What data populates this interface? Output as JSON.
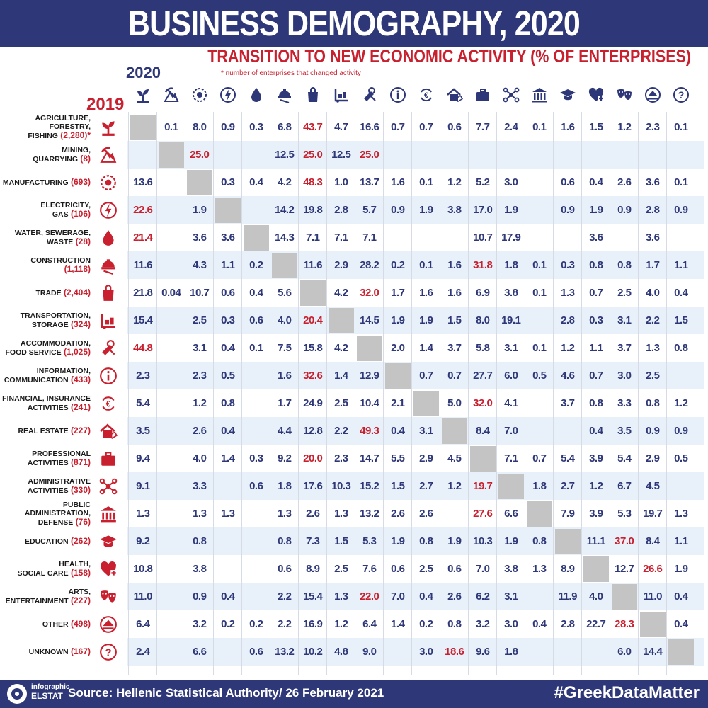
{
  "header": {
    "title": "BUSINESS DEMOGRAPHY, 2020",
    "subtitle": "TRANSITION TO NEW ECONOMIC ACTIVITY (% OF ENTERPRISES)",
    "footnote": "* number of enterprises that changed activity",
    "col_year": "2020",
    "row_year": "2019"
  },
  "footer": {
    "logo_line1": "infographic",
    "logo_line2": "ELSTAT",
    "source": "Source: Hellenic Statistical Authority/ 26 February 2021",
    "hashtag": "#GreekDataMatter"
  },
  "colors": {
    "navy": "#2e3878",
    "red": "#c8202f",
    "band": "#e8f1fa",
    "diag": "#c4c4c4"
  },
  "column_icons": [
    "agriculture-icon",
    "mining-icon",
    "manufacturing-icon",
    "electricity-icon",
    "water-icon",
    "construction-icon",
    "trade-icon",
    "transportation-icon",
    "accommodation-icon",
    "information-icon",
    "financial-icon",
    "real-estate-icon",
    "professional-icon",
    "administrative-icon",
    "public-administration-icon",
    "education-icon",
    "health-icon",
    "arts-icon",
    "other-icon",
    "unknown-icon"
  ],
  "chart_data": {
    "type": "table",
    "title": "TRANSITION TO NEW ECONOMIC ACTIVITY (% OF ENTERPRISES)",
    "rows": [
      {
        "label_lines": [
          "AGRICULTURE, FORESTRY,",
          "FISHING"
        ],
        "count": "(2,280)*",
        "values": [
          null,
          "0.1",
          "8.0",
          "0.9",
          "0.3",
          "6.8",
          "43.7",
          "4.7",
          "16.6",
          "0.7",
          "0.7",
          "0.6",
          "7.7",
          "2.4",
          "0.1",
          "1.6",
          "1.5",
          "1.2",
          "2.3",
          "0.1"
        ],
        "highlight": [
          6
        ]
      },
      {
        "label_lines": [
          "MINING,",
          "QUARRYING"
        ],
        "count": "(8)",
        "values": [
          "",
          null,
          "25.0",
          "",
          "",
          "12.5",
          "25.0",
          "12.5",
          "25.0",
          "",
          "",
          "",
          "",
          "",
          "",
          "",
          "",
          "",
          "",
          ""
        ],
        "highlight": [
          2,
          6,
          8
        ]
      },
      {
        "label_lines": [
          "MANUFACTURING"
        ],
        "count": "(693)",
        "values": [
          "13.6",
          "",
          null,
          "0.3",
          "0.4",
          "4.2",
          "48.3",
          "1.0",
          "13.7",
          "1.6",
          "0.1",
          "1.2",
          "5.2",
          "3.0",
          "",
          "0.6",
          "0.4",
          "2.6",
          "3.6",
          "0.1"
        ],
        "highlight": [
          6
        ]
      },
      {
        "label_lines": [
          "ELECTRICITY,",
          "GAS"
        ],
        "count": "(106)",
        "values": [
          "22.6",
          "",
          "1.9",
          null,
          "",
          "14.2",
          "19.8",
          "2.8",
          "5.7",
          "0.9",
          "1.9",
          "3.8",
          "17.0",
          "1.9",
          "",
          "0.9",
          "1.9",
          "0.9",
          "2.8",
          "0.9"
        ],
        "highlight": [
          0
        ]
      },
      {
        "label_lines": [
          "WATER, SEWERAGE,",
          "WASTE"
        ],
        "count": "(28)",
        "values": [
          "21.4",
          "",
          "3.6",
          "3.6",
          null,
          "14.3",
          "7.1",
          "7.1",
          "7.1",
          "",
          "",
          "",
          "10.7",
          "17.9",
          "",
          "",
          "3.6",
          "",
          "3.6",
          ""
        ],
        "highlight": [
          0
        ]
      },
      {
        "label_lines": [
          "CONSTRUCTION"
        ],
        "count": "(1,118)",
        "count_newline": true,
        "values": [
          "11.6",
          "",
          "4.3",
          "1.1",
          "0.2",
          null,
          "11.6",
          "2.9",
          "28.2",
          "0.2",
          "0.1",
          "1.6",
          "31.8",
          "1.8",
          "0.1",
          "0.3",
          "0.8",
          "0.8",
          "1.7",
          "1.1"
        ],
        "highlight": [
          12
        ]
      },
      {
        "label_lines": [
          "TRADE"
        ],
        "count": "(2,404)",
        "values": [
          "21.8",
          "0.04",
          "10.7",
          "0.6",
          "0.4",
          "5.6",
          null,
          "4.2",
          "32.0",
          "1.7",
          "1.6",
          "1.6",
          "6.9",
          "3.8",
          "0.1",
          "1.3",
          "0.7",
          "2.5",
          "4.0",
          "0.4"
        ],
        "highlight": [
          8
        ]
      },
      {
        "label_lines": [
          "TRANSPORTATION,",
          "STORAGE"
        ],
        "count": "(324)",
        "values": [
          "15.4",
          "",
          "2.5",
          "0.3",
          "0.6",
          "4.0",
          "20.4",
          null,
          "14.5",
          "1.9",
          "1.9",
          "1.5",
          "8.0",
          "19.1",
          "",
          "2.8",
          "0.3",
          "3.1",
          "2.2",
          "1.5"
        ],
        "highlight": [
          6
        ]
      },
      {
        "label_lines": [
          "ACCOMMODATION,",
          "FOOD SERVICE"
        ],
        "count": "(1,025)",
        "values": [
          "44.8",
          "",
          "3.1",
          "0.4",
          "0.1",
          "7.5",
          "15.8",
          "4.2",
          null,
          "2.0",
          "1.4",
          "3.7",
          "5.8",
          "3.1",
          "0.1",
          "1.2",
          "1.1",
          "3.7",
          "1.3",
          "0.8"
        ],
        "highlight": [
          0
        ]
      },
      {
        "label_lines": [
          "INFORMATION,",
          "COMMUNICATION"
        ],
        "count": "(433)",
        "values": [
          "2.3",
          "",
          "2.3",
          "0.5",
          "",
          "1.6",
          "32.6",
          "1.4",
          "12.9",
          null,
          "0.7",
          "0.7",
          "27.7",
          "6.0",
          "0.5",
          "4.6",
          "0.7",
          "3.0",
          "2.5",
          ""
        ],
        "highlight": [
          6
        ]
      },
      {
        "label_lines": [
          "FINANCIAL, INSURANCE",
          "ACTIVITIES"
        ],
        "count": "(241)",
        "values": [
          "5.4",
          "",
          "1.2",
          "0.8",
          "",
          "1.7",
          "24.9",
          "2.5",
          "10.4",
          "2.1",
          null,
          "5.0",
          "32.0",
          "4.1",
          "",
          "3.7",
          "0.8",
          "3.3",
          "0.8",
          "1.2"
        ],
        "highlight": [
          12
        ]
      },
      {
        "label_lines": [
          "REAL ESTATE"
        ],
        "count": "(227)",
        "values": [
          "3.5",
          "",
          "2.6",
          "0.4",
          "",
          "4.4",
          "12.8",
          "2.2",
          "49.3",
          "0.4",
          "3.1",
          null,
          "8.4",
          "7.0",
          "",
          "",
          "0.4",
          "3.5",
          "0.9",
          "0.9"
        ],
        "highlight": [
          8
        ]
      },
      {
        "label_lines": [
          "PROFESSIONAL",
          "ACTIVITIES"
        ],
        "count": "(871)",
        "values": [
          "9.4",
          "",
          "4.0",
          "1.4",
          "0.3",
          "9.2",
          "20.0",
          "2.3",
          "14.7",
          "5.5",
          "2.9",
          "4.5",
          null,
          "7.1",
          "0.7",
          "5.4",
          "3.9",
          "5.4",
          "2.9",
          "0.5"
        ],
        "highlight": [
          6
        ]
      },
      {
        "label_lines": [
          "ADMINISTRATIVE",
          "ACTIVITIES"
        ],
        "count": "(330)",
        "values": [
          "9.1",
          "",
          "3.3",
          "",
          "0.6",
          "1.8",
          "17.6",
          "10.3",
          "15.2",
          "1.5",
          "2.7",
          "1.2",
          "19.7",
          null,
          "1.8",
          "2.7",
          "1.2",
          "6.7",
          "4.5",
          ""
        ],
        "highlight": [
          12
        ]
      },
      {
        "label_lines": [
          "PUBLIC",
          "ADMINISTRATION,",
          "DEFENSE"
        ],
        "count": "(76)",
        "values": [
          "1.3",
          "",
          "1.3",
          "1.3",
          "",
          "1.3",
          "2.6",
          "1.3",
          "13.2",
          "2.6",
          "2.6",
          "",
          "27.6",
          "6.6",
          null,
          "7.9",
          "3.9",
          "5.3",
          "19.7",
          "1.3"
        ],
        "highlight": [
          12
        ]
      },
      {
        "label_lines": [
          "EDUCATION"
        ],
        "count": "(262)",
        "values": [
          "9.2",
          "",
          "0.8",
          "",
          "",
          "0.8",
          "7.3",
          "1.5",
          "5.3",
          "1.9",
          "0.8",
          "1.9",
          "10.3",
          "1.9",
          "0.8",
          null,
          "11.1",
          "37.0",
          "8.4",
          "1.1"
        ],
        "highlight": [
          17
        ]
      },
      {
        "label_lines": [
          "HEALTH,",
          "SOCIAL CARE"
        ],
        "count": "(158)",
        "values": [
          "10.8",
          "",
          "3.8",
          "",
          "",
          "0.6",
          "8.9",
          "2.5",
          "7.6",
          "0.6",
          "2.5",
          "0.6",
          "7.0",
          "3.8",
          "1.3",
          "8.9",
          null,
          "12.7",
          "26.6",
          "1.9"
        ],
        "highlight": [
          18
        ]
      },
      {
        "label_lines": [
          "ARTS,",
          "ENTERTAINMENT"
        ],
        "count": "(227)",
        "values": [
          "11.0",
          "",
          "0.9",
          "0.4",
          "",
          "2.2",
          "15.4",
          "1.3",
          "22.0",
          "7.0",
          "0.4",
          "2.6",
          "6.2",
          "3.1",
          "",
          "11.9",
          "4.0",
          null,
          "11.0",
          "0.4"
        ],
        "highlight": [
          8
        ]
      },
      {
        "label_lines": [
          "OTHER"
        ],
        "count": "(498)",
        "values": [
          "6.4",
          "",
          "3.2",
          "0.2",
          "0.2",
          "2.2",
          "16.9",
          "1.2",
          "6.4",
          "1.4",
          "0.2",
          "0.8",
          "3.2",
          "3.0",
          "0.4",
          "2.8",
          "22.7",
          "28.3",
          null,
          "0.4"
        ],
        "highlight": [
          17
        ]
      },
      {
        "label_lines": [
          "UNKNOWN"
        ],
        "count": "(167)",
        "values": [
          "2.4",
          "",
          "6.6",
          "",
          "0.6",
          "13.2",
          "10.2",
          "4.8",
          "9.0",
          "",
          "3.0",
          "18.6",
          "9.6",
          "1.8",
          "",
          "",
          "",
          "6.0",
          "14.4",
          null
        ],
        "highlight": [
          11
        ]
      }
    ]
  }
}
